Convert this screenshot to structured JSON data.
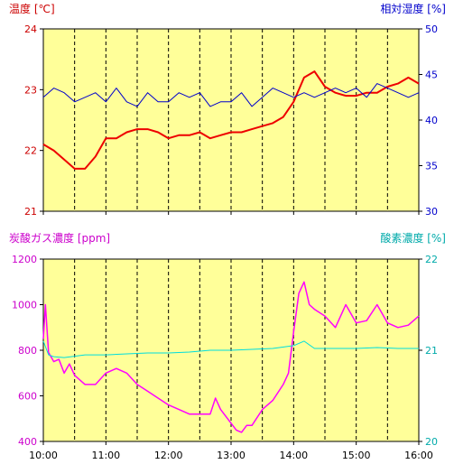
{
  "chart_data": [
    {
      "type": "line",
      "title_left": "温度 [℃]",
      "title_right": "相対湿度 [%]",
      "x_ticks": [
        "10:00",
        "11:00",
        "12:00",
        "13:00",
        "14:00",
        "15:00",
        "16:00"
      ],
      "x_range": [
        "10:00",
        "16:00"
      ],
      "left_axis": {
        "label": "温度 [℃]",
        "ticks": [
          "24",
          "23",
          "22",
          "21"
        ],
        "range": [
          21,
          24
        ]
      },
      "right_axis": {
        "label": "相対湿度 [%]",
        "ticks": [
          "50",
          "45",
          "40",
          "35",
          "30"
        ],
        "range": [
          30,
          50
        ]
      },
      "background": "#ffff99",
      "grid": "dashed vertical every 30 min",
      "series": [
        {
          "axis": "left",
          "color": "#ee0000",
          "times": [
            "10:00",
            "10:10",
            "10:20",
            "10:30",
            "10:40",
            "10:50",
            "11:00",
            "11:10",
            "11:20",
            "11:30",
            "11:40",
            "11:50",
            "12:00",
            "12:10",
            "12:20",
            "12:30",
            "12:40",
            "12:50",
            "13:00",
            "13:10",
            "13:20",
            "13:30",
            "13:40",
            "13:50",
            "14:00",
            "14:10",
            "14:20",
            "14:30",
            "14:40",
            "14:50",
            "15:00",
            "15:10",
            "15:20",
            "15:30",
            "15:40",
            "15:50",
            "16:00"
          ],
          "values": [
            22.1,
            22.0,
            21.85,
            21.7,
            21.7,
            21.9,
            22.2,
            22.2,
            22.3,
            22.35,
            22.35,
            22.3,
            22.2,
            22.25,
            22.25,
            22.3,
            22.2,
            22.25,
            22.3,
            22.3,
            22.35,
            22.4,
            22.45,
            22.55,
            22.8,
            23.2,
            23.3,
            23.05,
            22.95,
            22.9,
            22.9,
            22.95,
            22.95,
            23.05,
            23.1,
            23.2,
            23.1
          ]
        },
        {
          "axis": "right",
          "color": "#0000cc",
          "times": [
            "10:00",
            "10:10",
            "10:20",
            "10:30",
            "10:40",
            "10:50",
            "11:00",
            "11:10",
            "11:20",
            "11:30",
            "11:40",
            "11:50",
            "12:00",
            "12:10",
            "12:20",
            "12:30",
            "12:40",
            "12:50",
            "13:00",
            "13:10",
            "13:20",
            "13:30",
            "13:40",
            "13:50",
            "14:00",
            "14:10",
            "14:20",
            "14:30",
            "14:40",
            "14:50",
            "15:00",
            "15:10",
            "15:20",
            "15:30",
            "15:40",
            "15:50",
            "16:00"
          ],
          "values": [
            42.5,
            43.5,
            43.0,
            42.0,
            42.5,
            43.0,
            42.0,
            43.5,
            42.0,
            41.5,
            43.0,
            42.0,
            42.0,
            43.0,
            42.5,
            43.0,
            41.5,
            42.0,
            42.0,
            43.0,
            41.5,
            42.5,
            43.5,
            43.0,
            42.5,
            43.0,
            42.5,
            43.0,
            43.5,
            43.0,
            43.5,
            42.5,
            44.0,
            43.5,
            43.0,
            42.5,
            43.0
          ]
        }
      ]
    },
    {
      "type": "line",
      "title_left": "炭酸ガス濃度 [ppm]",
      "title_right": "酸素濃度 [%]",
      "x_ticks": [
        "10:00",
        "11:00",
        "12:00",
        "13:00",
        "14:00",
        "15:00",
        "16:00"
      ],
      "x_range": [
        "10:00",
        "16:00"
      ],
      "left_axis": {
        "label": "炭酸ガス濃度 [ppm]",
        "ticks": [
          "1200",
          "1000",
          "800",
          "600",
          "400"
        ],
        "range": [
          400,
          1200
        ]
      },
      "right_axis": {
        "label": "酸素濃度 [%]",
        "ticks": [
          "22",
          "21",
          "20"
        ],
        "range": [
          20,
          22
        ]
      },
      "background": "#ffff99",
      "grid": "dashed vertical every 30 min",
      "series": [
        {
          "axis": "left",
          "color": "#ff00ff",
          "times": [
            "10:00",
            "10:02",
            "10:05",
            "10:10",
            "10:15",
            "10:20",
            "10:25",
            "10:30",
            "10:40",
            "10:50",
            "11:00",
            "11:10",
            "11:20",
            "11:30",
            "11:40",
            "11:50",
            "12:00",
            "12:10",
            "12:20",
            "12:30",
            "12:40",
            "12:45",
            "12:50",
            "13:00",
            "13:05",
            "13:10",
            "13:15",
            "13:20",
            "13:30",
            "13:40",
            "13:50",
            "13:55",
            "14:00",
            "14:05",
            "14:10",
            "14:15",
            "14:20",
            "14:30",
            "14:40",
            "14:50",
            "15:00",
            "15:10",
            "15:20",
            "15:30",
            "15:40",
            "15:50",
            "16:00"
          ],
          "values": [
            850,
            1000,
            790,
            750,
            760,
            700,
            740,
            690,
            650,
            650,
            700,
            720,
            700,
            650,
            620,
            590,
            560,
            540,
            520,
            520,
            520,
            590,
            540,
            480,
            450,
            440,
            470,
            470,
            540,
            580,
            650,
            700,
            880,
            1050,
            1100,
            1000,
            980,
            950,
            900,
            1000,
            920,
            930,
            1000,
            920,
            900,
            910,
            950
          ]
        },
        {
          "axis": "right",
          "color": "#00dddd",
          "times": [
            "10:00",
            "10:05",
            "10:10",
            "10:20",
            "10:40",
            "11:00",
            "11:20",
            "11:40",
            "12:00",
            "12:20",
            "12:40",
            "13:00",
            "13:20",
            "13:40",
            "14:00",
            "14:10",
            "14:20",
            "14:40",
            "15:00",
            "15:20",
            "15:40",
            "16:00"
          ],
          "values": [
            21.1,
            20.95,
            20.93,
            20.92,
            20.95,
            20.95,
            20.96,
            20.97,
            20.97,
            20.98,
            21.0,
            21.0,
            21.01,
            21.02,
            21.05,
            21.1,
            21.02,
            21.02,
            21.02,
            21.03,
            21.02,
            21.02
          ]
        }
      ]
    }
  ]
}
